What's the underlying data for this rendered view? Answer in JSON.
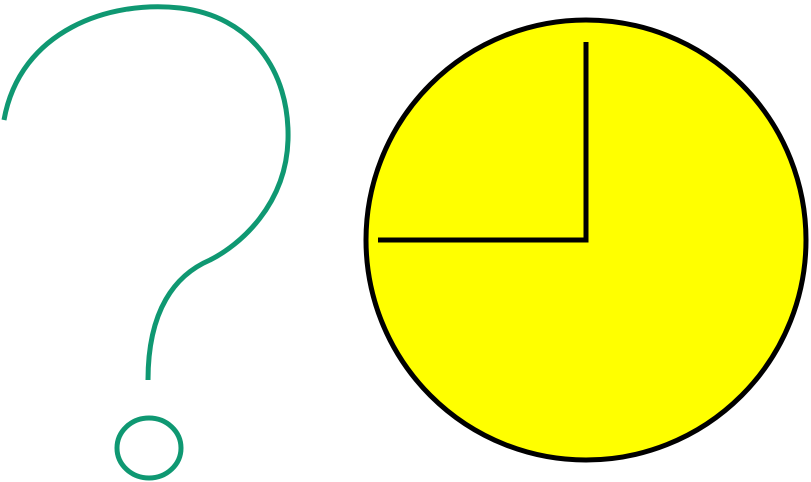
{
  "figure": {
    "question_mark": {
      "icon": "question-mark-icon",
      "color": "#0f9872"
    },
    "clock": {
      "icon": "clock-face-icon",
      "fill_color": "#ffff00",
      "outline_color": "#000000",
      "hands_color": "#000000",
      "time_shown": "9:00"
    }
  }
}
